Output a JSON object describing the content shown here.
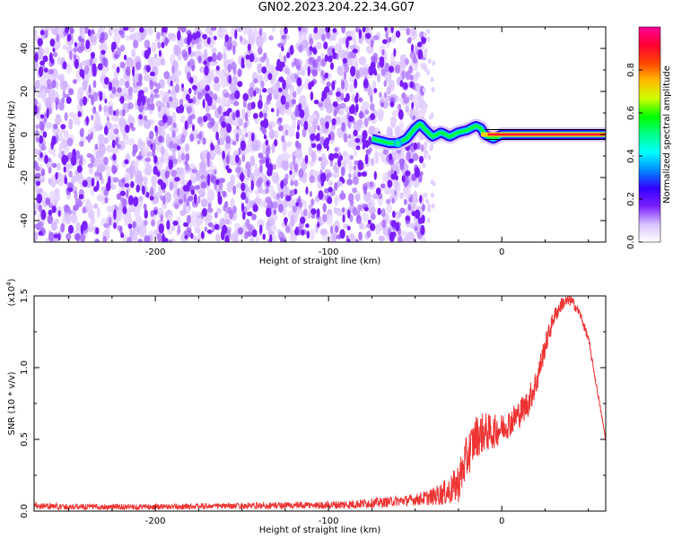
{
  "title": "GN02.2023.204.22.34.G07",
  "chart_data": [
    {
      "type": "heatmap",
      "xlabel": "Height of straight line (km)",
      "ylabel": "Frequency (Hz)",
      "xlim": [
        -270,
        60
      ],
      "ylim": [
        -50,
        50
      ],
      "xticks": [
        -200,
        -100,
        0
      ],
      "yticks": [
        -40,
        -20,
        0,
        20,
        40
      ],
      "grid": false,
      "colorbar": {
        "label": "Normalized spectral amplitude",
        "ticks": [
          "0.0",
          "0.2",
          "0.4",
          "0.6",
          "0.8"
        ],
        "range": [
          0,
          1
        ],
        "colors": [
          "#ffffff",
          "#d9c2ff",
          "#7a1fff",
          "#3300ff",
          "#0088ff",
          "#00ffff",
          "#00ff88",
          "#00ff00",
          "#ccff00",
          "#ffbb00",
          "#ff4400",
          "#ff0033",
          "#ff0099"
        ]
      },
      "noise_region": {
        "x_from": -270,
        "x_to": -45,
        "dominant_color": "#7a1fff"
      },
      "ridge": {
        "x": [
          -75,
          -70,
          -65,
          -60,
          -55,
          -50,
          -47,
          -45,
          -40,
          -35,
          -30,
          -25,
          -20,
          -15,
          -12,
          -10,
          -5,
          0,
          10,
          20,
          30,
          40,
          50,
          60
        ],
        "freq": [
          -2,
          -3,
          -4,
          -4,
          -2,
          3,
          5,
          3,
          -1,
          1,
          -1,
          1,
          2,
          4,
          3,
          0,
          -2,
          0,
          0,
          0,
          0,
          0,
          0,
          0
        ],
        "amp": [
          0.2,
          0.22,
          0.25,
          0.3,
          0.32,
          0.4,
          0.45,
          0.45,
          0.5,
          0.5,
          0.55,
          0.55,
          0.6,
          0.6,
          0.65,
          0.7,
          0.72,
          0.9,
          0.95,
          0.95,
          0.95,
          0.95,
          0.95,
          0.95
        ]
      }
    },
    {
      "type": "line",
      "xlabel": "Height of straight line (km)",
      "ylabel": "SNR (10 * v/v)",
      "scale_label": "(x10",
      "scale_exponent": "4",
      "xlim": [
        -270,
        60
      ],
      "ylim": [
        0,
        1.5
      ],
      "xticks": [
        -200,
        -100,
        0
      ],
      "yticks": [
        "0.0",
        "0.5",
        "1.0",
        "1.5"
      ],
      "grid": false,
      "line_color": "#ee3333",
      "series": [
        {
          "x": [
            -270,
            -250,
            -230,
            -210,
            -190,
            -170,
            -150,
            -130,
            -110,
            -90,
            -70,
            -60,
            -50,
            -45,
            -40,
            -35,
            -30,
            -25,
            -20,
            -15,
            -10,
            -5,
            0,
            5,
            10,
            15,
            20,
            25,
            30,
            35,
            40,
            45,
            50,
            55,
            60
          ],
          "values": [
            0.04,
            0.03,
            0.03,
            0.03,
            0.03,
            0.035,
            0.035,
            0.04,
            0.04,
            0.045,
            0.06,
            0.07,
            0.08,
            0.09,
            0.1,
            0.12,
            0.14,
            0.2,
            0.38,
            0.52,
            0.55,
            0.55,
            0.58,
            0.62,
            0.68,
            0.75,
            0.9,
            1.15,
            1.35,
            1.45,
            1.47,
            1.38,
            1.2,
            0.85,
            0.5
          ],
          "noise": [
            0.025,
            0.02,
            0.02,
            0.02,
            0.02,
            0.02,
            0.02,
            0.025,
            0.025,
            0.03,
            0.035,
            0.035,
            0.04,
            0.05,
            0.06,
            0.08,
            0.1,
            0.14,
            0.16,
            0.15,
            0.14,
            0.12,
            0.1,
            0.1,
            0.1,
            0.1,
            0.1,
            0.08,
            0.06,
            0.05,
            0.04,
            0.03,
            0.03,
            0.02,
            0.02
          ]
        }
      ]
    }
  ]
}
